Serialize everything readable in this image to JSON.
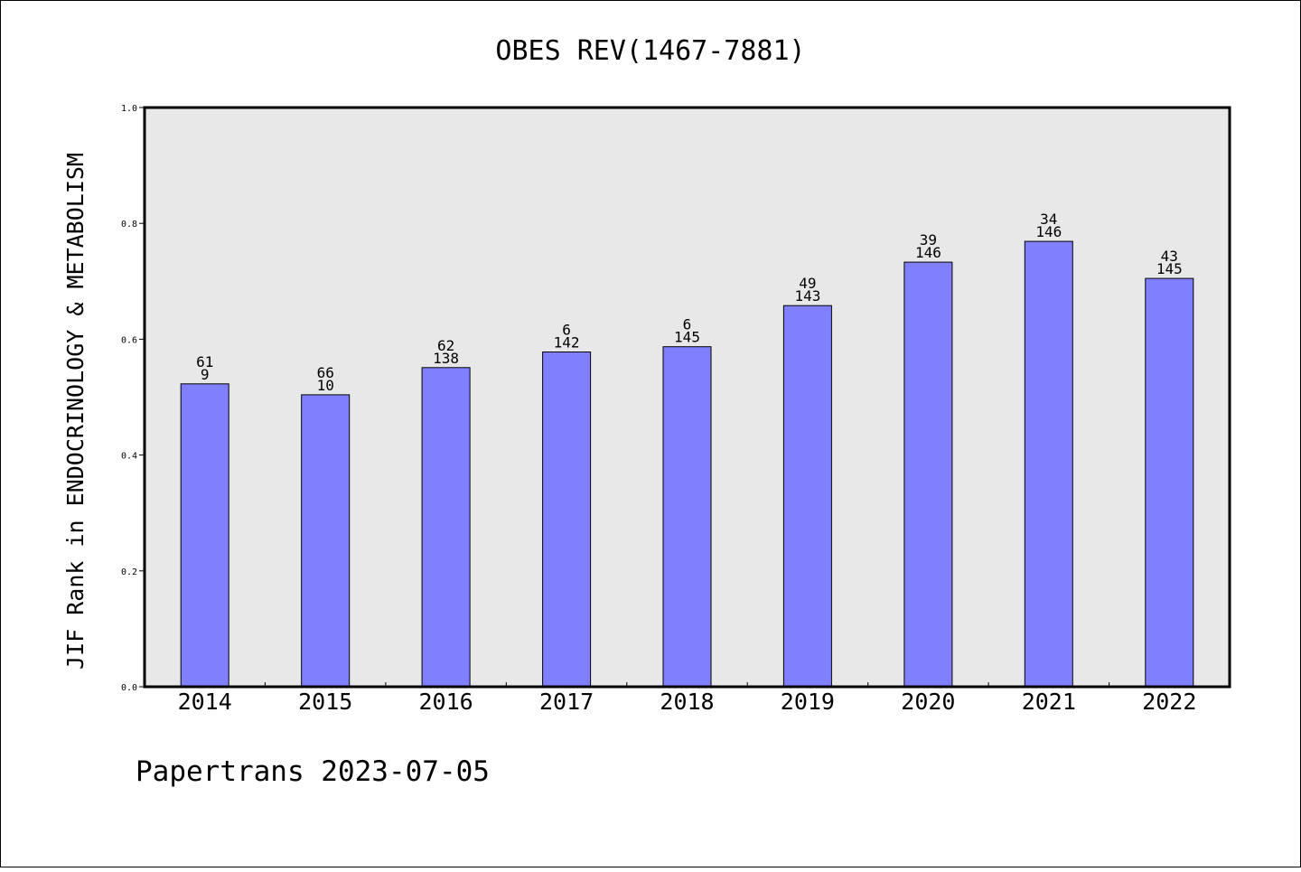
{
  "chart_data": {
    "type": "bar",
    "title": "OBES REV(1467-7881)",
    "xlabel": "",
    "ylabel": "JIF Rank in ENDOCRINOLOGY & METABOLISM",
    "categories": [
      "2014",
      "2015",
      "2016",
      "2017",
      "2018",
      "2019",
      "2020",
      "2021",
      "2022"
    ],
    "values": [
      0.523,
      0.504,
      0.551,
      0.578,
      0.587,
      0.658,
      0.733,
      0.769,
      0.705
    ],
    "bar_labels": [
      [
        "61",
        "9"
      ],
      [
        "66",
        "10"
      ],
      [
        "62",
        "138"
      ],
      [
        "6",
        "142"
      ],
      [
        "6",
        "145"
      ],
      [
        "49",
        "143"
      ],
      [
        "39",
        "146"
      ],
      [
        "34",
        "146"
      ],
      [
        "43",
        "145"
      ]
    ],
    "ylim": [
      0,
      1.0
    ],
    "yticks": [
      "0.0",
      "0.2",
      "0.4",
      "0.6",
      "0.8",
      "1.0"
    ],
    "grid": false,
    "legend": "none",
    "colors": {
      "bar": "#8080ff",
      "plot_background": "#e8e8e8",
      "frame": "#000000"
    }
  },
  "footer": {
    "text": "Papertrans 2023-07-05"
  }
}
